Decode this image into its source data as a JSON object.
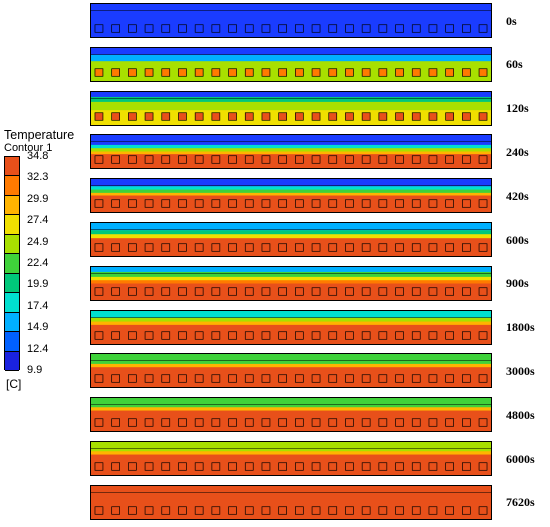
{
  "legend": {
    "title": "Temperature",
    "subtitle": "Contour 1",
    "unit": "[C]",
    "ticks": [
      "34.8",
      "32.3",
      "29.9",
      "27.4",
      "24.9",
      "22.4",
      "19.9",
      "17.4",
      "14.9",
      "12.4",
      "9.9"
    ],
    "colors": [
      "#e8501a",
      "#ff7a00",
      "#ffb400",
      "#f0e000",
      "#a8e000",
      "#3fd23a",
      "#00c87a",
      "#00e0d0",
      "#00b0ff",
      "#0060ff",
      "#1a22e0"
    ]
  },
  "snapshots": [
    {
      "time": "0s",
      "bands": [
        [
          "#1a3cff",
          1
        ]
      ],
      "dot": "#1a3cff"
    },
    {
      "time": "60s",
      "bands": [
        [
          "#1a3cff",
          0.2
        ],
        [
          "#00b0ff",
          0.2
        ],
        [
          "#a8e000",
          0.6
        ]
      ],
      "dot": "#ff7a00"
    },
    {
      "time": "120s",
      "bands": [
        [
          "#1a3cff",
          0.15
        ],
        [
          "#00c87a",
          0.15
        ],
        [
          "#a8e000",
          0.25
        ],
        [
          "#f0e000",
          0.45
        ]
      ],
      "dot": "#e8501a"
    },
    {
      "time": "240s",
      "bands": [
        [
          "#1a3cff",
          0.3
        ],
        [
          "#00e0d0",
          0.1
        ],
        [
          "#a8e000",
          0.1
        ],
        [
          "#ffb400",
          0.08
        ],
        [
          "#e8501a",
          0.42
        ]
      ],
      "dot": "#e8501a"
    },
    {
      "time": "420s",
      "bands": [
        [
          "#1a3cff",
          0.22
        ],
        [
          "#00e0d0",
          0.1
        ],
        [
          "#3fd23a",
          0.1
        ],
        [
          "#ffb400",
          0.08
        ],
        [
          "#e8501a",
          0.5
        ]
      ],
      "dot": "#e8501a"
    },
    {
      "time": "600s",
      "bands": [
        [
          "#00b0ff",
          0.22
        ],
        [
          "#00c87a",
          0.12
        ],
        [
          "#f0e000",
          0.12
        ],
        [
          "#e8501a",
          0.54
        ]
      ],
      "dot": "#e8501a"
    },
    {
      "time": "900s",
      "bands": [
        [
          "#00b0ff",
          0.15
        ],
        [
          "#3fd23a",
          0.15
        ],
        [
          "#f0e000",
          0.1
        ],
        [
          "#ff7a00",
          0.1
        ],
        [
          "#e8501a",
          0.5
        ]
      ],
      "dot": "#e8501a"
    },
    {
      "time": "1800s",
      "bands": [
        [
          "#00e0d0",
          0.2
        ],
        [
          "#a8e000",
          0.12
        ],
        [
          "#ffb400",
          0.1
        ],
        [
          "#e8501a",
          0.58
        ]
      ],
      "dot": "#e8501a"
    },
    {
      "time": "3000s",
      "bands": [
        [
          "#3fd23a",
          0.3
        ],
        [
          "#ffb400",
          0.1
        ],
        [
          "#e8501a",
          0.6
        ]
      ],
      "dot": "#e8501a"
    },
    {
      "time": "4800s",
      "bands": [
        [
          "#3fd23a",
          0.28
        ],
        [
          "#ffb400",
          0.1
        ],
        [
          "#e8501a",
          0.62
        ]
      ],
      "dot": "#e8501a"
    },
    {
      "time": "6000s",
      "bands": [
        [
          "#a8e000",
          0.28
        ],
        [
          "#ffb400",
          0.1
        ],
        [
          "#e8501a",
          0.62
        ]
      ],
      "dot": "#e8501a"
    },
    {
      "time": "7620s",
      "bands": [
        [
          "#e8501a",
          1
        ]
      ],
      "dot": "#e8501a"
    }
  ]
}
